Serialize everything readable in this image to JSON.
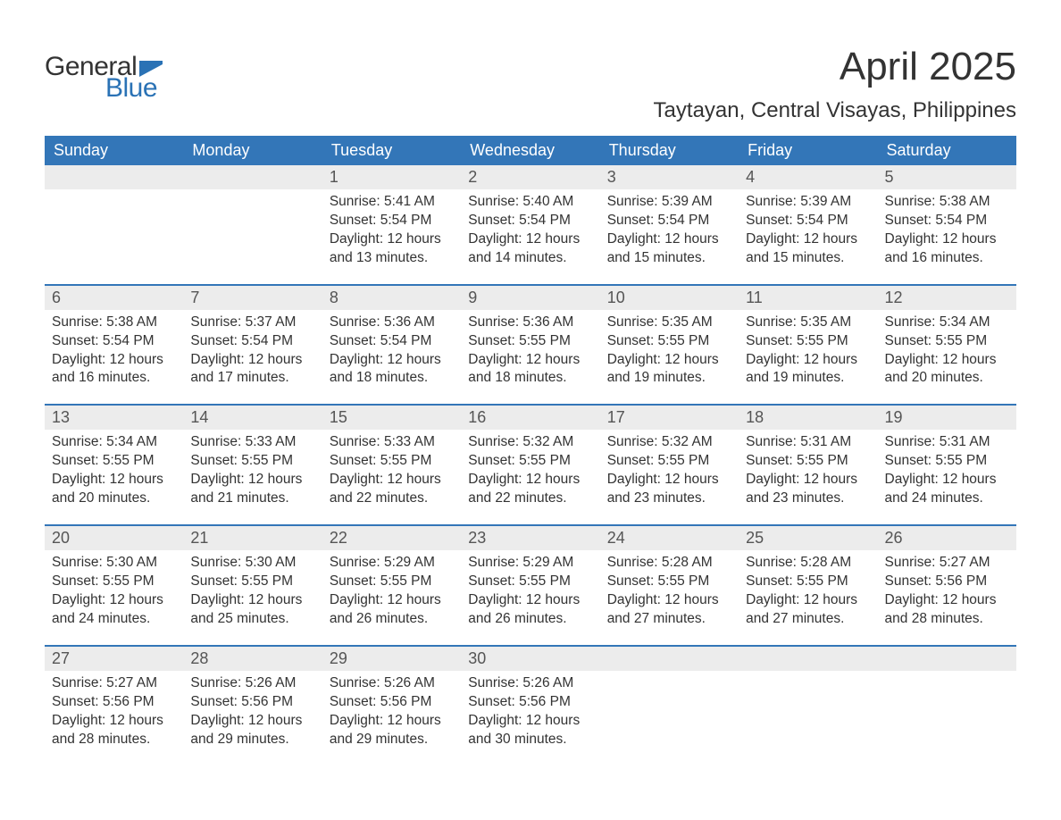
{
  "logo": {
    "text1": "General",
    "text2": "Blue",
    "flag_color": "#2a72b5"
  },
  "title": "April 2025",
  "location": "Taytayan, Central Visayas, Philippines",
  "colors": {
    "header_bg": "#3376b8",
    "header_text": "#ffffff",
    "daynum_bg": "#ececec",
    "week_border": "#3376b8",
    "body_text": "#333333",
    "logo_blue": "#2a72b5"
  },
  "day_headers": [
    "Sunday",
    "Monday",
    "Tuesday",
    "Wednesday",
    "Thursday",
    "Friday",
    "Saturday"
  ],
  "weeks": [
    [
      {
        "n": "",
        "lines": []
      },
      {
        "n": "",
        "lines": []
      },
      {
        "n": "1",
        "lines": [
          "Sunrise: 5:41 AM",
          "Sunset: 5:54 PM",
          "Daylight: 12 hours and 13 minutes."
        ]
      },
      {
        "n": "2",
        "lines": [
          "Sunrise: 5:40 AM",
          "Sunset: 5:54 PM",
          "Daylight: 12 hours and 14 minutes."
        ]
      },
      {
        "n": "3",
        "lines": [
          "Sunrise: 5:39 AM",
          "Sunset: 5:54 PM",
          "Daylight: 12 hours and 15 minutes."
        ]
      },
      {
        "n": "4",
        "lines": [
          "Sunrise: 5:39 AM",
          "Sunset: 5:54 PM",
          "Daylight: 12 hours and 15 minutes."
        ]
      },
      {
        "n": "5",
        "lines": [
          "Sunrise: 5:38 AM",
          "Sunset: 5:54 PM",
          "Daylight: 12 hours and 16 minutes."
        ]
      }
    ],
    [
      {
        "n": "6",
        "lines": [
          "Sunrise: 5:38 AM",
          "Sunset: 5:54 PM",
          "Daylight: 12 hours and 16 minutes."
        ]
      },
      {
        "n": "7",
        "lines": [
          "Sunrise: 5:37 AM",
          "Sunset: 5:54 PM",
          "Daylight: 12 hours and 17 minutes."
        ]
      },
      {
        "n": "8",
        "lines": [
          "Sunrise: 5:36 AM",
          "Sunset: 5:54 PM",
          "Daylight: 12 hours and 18 minutes."
        ]
      },
      {
        "n": "9",
        "lines": [
          "Sunrise: 5:36 AM",
          "Sunset: 5:55 PM",
          "Daylight: 12 hours and 18 minutes."
        ]
      },
      {
        "n": "10",
        "lines": [
          "Sunrise: 5:35 AM",
          "Sunset: 5:55 PM",
          "Daylight: 12 hours and 19 minutes."
        ]
      },
      {
        "n": "11",
        "lines": [
          "Sunrise: 5:35 AM",
          "Sunset: 5:55 PM",
          "Daylight: 12 hours and 19 minutes."
        ]
      },
      {
        "n": "12",
        "lines": [
          "Sunrise: 5:34 AM",
          "Sunset: 5:55 PM",
          "Daylight: 12 hours and 20 minutes."
        ]
      }
    ],
    [
      {
        "n": "13",
        "lines": [
          "Sunrise: 5:34 AM",
          "Sunset: 5:55 PM",
          "Daylight: 12 hours and 20 minutes."
        ]
      },
      {
        "n": "14",
        "lines": [
          "Sunrise: 5:33 AM",
          "Sunset: 5:55 PM",
          "Daylight: 12 hours and 21 minutes."
        ]
      },
      {
        "n": "15",
        "lines": [
          "Sunrise: 5:33 AM",
          "Sunset: 5:55 PM",
          "Daylight: 12 hours and 22 minutes."
        ]
      },
      {
        "n": "16",
        "lines": [
          "Sunrise: 5:32 AM",
          "Sunset: 5:55 PM",
          "Daylight: 12 hours and 22 minutes."
        ]
      },
      {
        "n": "17",
        "lines": [
          "Sunrise: 5:32 AM",
          "Sunset: 5:55 PM",
          "Daylight: 12 hours and 23 minutes."
        ]
      },
      {
        "n": "18",
        "lines": [
          "Sunrise: 5:31 AM",
          "Sunset: 5:55 PM",
          "Daylight: 12 hours and 23 minutes."
        ]
      },
      {
        "n": "19",
        "lines": [
          "Sunrise: 5:31 AM",
          "Sunset: 5:55 PM",
          "Daylight: 12 hours and 24 minutes."
        ]
      }
    ],
    [
      {
        "n": "20",
        "lines": [
          "Sunrise: 5:30 AM",
          "Sunset: 5:55 PM",
          "Daylight: 12 hours and 24 minutes."
        ]
      },
      {
        "n": "21",
        "lines": [
          "Sunrise: 5:30 AM",
          "Sunset: 5:55 PM",
          "Daylight: 12 hours and 25 minutes."
        ]
      },
      {
        "n": "22",
        "lines": [
          "Sunrise: 5:29 AM",
          "Sunset: 5:55 PM",
          "Daylight: 12 hours and 26 minutes."
        ]
      },
      {
        "n": "23",
        "lines": [
          "Sunrise: 5:29 AM",
          "Sunset: 5:55 PM",
          "Daylight: 12 hours and 26 minutes."
        ]
      },
      {
        "n": "24",
        "lines": [
          "Sunrise: 5:28 AM",
          "Sunset: 5:55 PM",
          "Daylight: 12 hours and 27 minutes."
        ]
      },
      {
        "n": "25",
        "lines": [
          "Sunrise: 5:28 AM",
          "Sunset: 5:55 PM",
          "Daylight: 12 hours and 27 minutes."
        ]
      },
      {
        "n": "26",
        "lines": [
          "Sunrise: 5:27 AM",
          "Sunset: 5:56 PM",
          "Daylight: 12 hours and 28 minutes."
        ]
      }
    ],
    [
      {
        "n": "27",
        "lines": [
          "Sunrise: 5:27 AM",
          "Sunset: 5:56 PM",
          "Daylight: 12 hours and 28 minutes."
        ]
      },
      {
        "n": "28",
        "lines": [
          "Sunrise: 5:26 AM",
          "Sunset: 5:56 PM",
          "Daylight: 12 hours and 29 minutes."
        ]
      },
      {
        "n": "29",
        "lines": [
          "Sunrise: 5:26 AM",
          "Sunset: 5:56 PM",
          "Daylight: 12 hours and 29 minutes."
        ]
      },
      {
        "n": "30",
        "lines": [
          "Sunrise: 5:26 AM",
          "Sunset: 5:56 PM",
          "Daylight: 12 hours and 30 minutes."
        ]
      },
      {
        "n": "",
        "lines": []
      },
      {
        "n": "",
        "lines": []
      },
      {
        "n": "",
        "lines": []
      }
    ]
  ]
}
